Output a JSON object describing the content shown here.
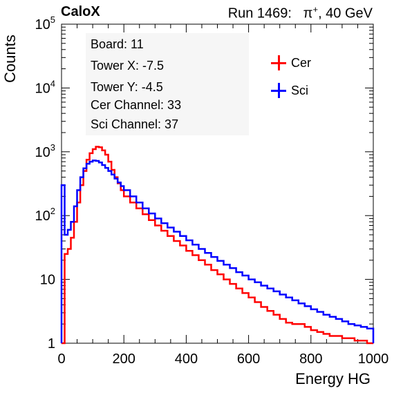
{
  "header": {
    "experiment": "CaloX",
    "run_prefix": "Run 1469:",
    "particle": "π",
    "charge": "+",
    "beam_energy": ", 40 GeV"
  },
  "info_box": [
    "Board: 11",
    "Tower X: -7.5",
    "Tower Y: -4.5",
    "Cer Channel: 33",
    "Sci Channel: 37"
  ],
  "colors": {
    "cer": "#ff0000",
    "sci": "#0000ff",
    "axis": "#000000"
  },
  "chart_data": {
    "type": "line",
    "style": "step histogram",
    "xlabel": "Energy HG",
    "ylabel": "Counts",
    "xlim": [
      0,
      1000
    ],
    "ylim": [
      1,
      100000
    ],
    "yscale": "log",
    "grid": false,
    "legend_position": "top-right",
    "x_ticks": [
      0,
      200,
      400,
      600,
      800,
      1000
    ],
    "x_tick_labels": [
      "0",
      "200",
      "400",
      "600",
      "800",
      "1000"
    ],
    "y_ticks": [
      1,
      10,
      100,
      1000,
      10000,
      100000
    ],
    "y_tick_labels": [
      {
        "base": "1",
        "exp": ""
      },
      {
        "base": "10",
        "exp": ""
      },
      {
        "base": "10",
        "exp": "2"
      },
      {
        "base": "10",
        "exp": "3"
      },
      {
        "base": "10",
        "exp": "4"
      },
      {
        "base": "10",
        "exp": "5"
      }
    ],
    "x": [
      0,
      10,
      20,
      30,
      40,
      50,
      60,
      70,
      80,
      90,
      100,
      110,
      120,
      130,
      140,
      150,
      160,
      170,
      180,
      190,
      200,
      220,
      240,
      260,
      280,
      300,
      320,
      340,
      360,
      380,
      400,
      420,
      440,
      460,
      480,
      500,
      520,
      540,
      560,
      580,
      600,
      620,
      640,
      660,
      680,
      700,
      720,
      740,
      760,
      780,
      800,
      820,
      840,
      860,
      880,
      900,
      920,
      940,
      960,
      980,
      1000
    ],
    "series": [
      {
        "name": "Cer",
        "values": [
          1,
          25,
          30,
          45,
          80,
          160,
          300,
          500,
          750,
          950,
          1100,
          1200,
          1180,
          1050,
          900,
          700,
          520,
          400,
          320,
          250,
          200,
          160,
          130,
          105,
          85,
          70,
          58,
          48,
          40,
          34,
          28,
          24,
          20,
          17,
          14,
          12,
          10,
          8.5,
          7.2,
          6.1,
          5.2,
          4.4,
          3.7,
          3.2,
          2.8,
          2.4,
          2.1,
          2,
          2,
          1.8,
          1.6,
          1.5,
          1.4,
          1.3,
          1.3,
          1.2,
          1.2,
          1.1,
          1.1,
          1,
          1
        ]
      },
      {
        "name": "Sci",
        "values": [
          300,
          50,
          60,
          80,
          140,
          250,
          400,
          550,
          650,
          700,
          730,
          720,
          680,
          620,
          560,
          500,
          440,
          380,
          330,
          290,
          250,
          200,
          160,
          130,
          108,
          90,
          76,
          65,
          56,
          48,
          41,
          35,
          30,
          26,
          22.5,
          19.5,
          17,
          15,
          13,
          11.5,
          10,
          9,
          8,
          7.2,
          6.5,
          5.8,
          5.2,
          4.7,
          4.2,
          3.8,
          3.4,
          3.1,
          2.8,
          2.6,
          2.4,
          2.2,
          2,
          1.9,
          1.8,
          1.7,
          1
        ]
      }
    ]
  }
}
